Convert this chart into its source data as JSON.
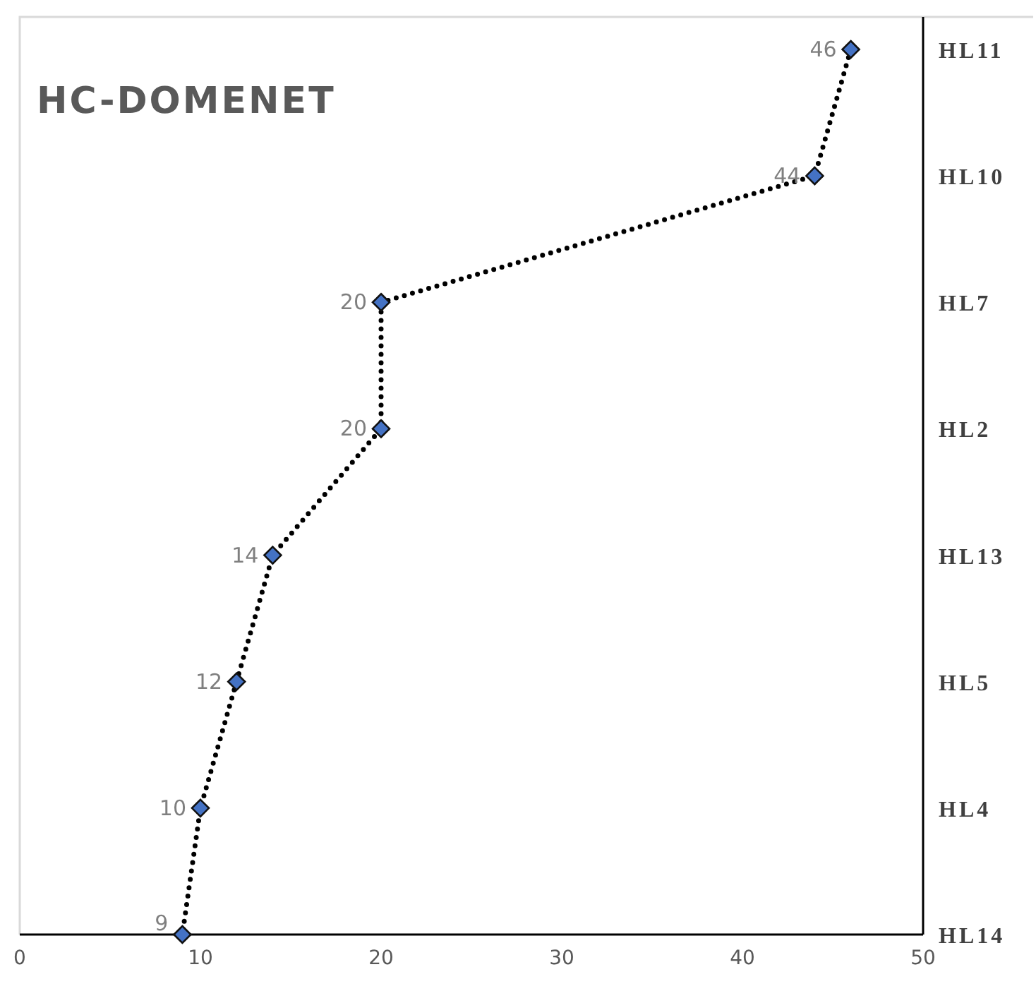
{
  "chart_data": {
    "type": "line",
    "orientation": "horizontal",
    "title": "HC-DOMENET",
    "categories": [
      "HL11",
      "HL10",
      "HL7",
      "HL2",
      "HL13",
      "HL5",
      "HL4",
      "HL14"
    ],
    "series": [
      {
        "color": "#4472c4",
        "values": [
          46,
          44,
          20,
          20,
          14,
          12,
          10,
          9
        ]
      }
    ],
    "xlim": [
      0,
      50
    ],
    "xticks": [
      0,
      10,
      20,
      30,
      40,
      50
    ],
    "data_labels": true,
    "marker": "diamond",
    "line_style": "dotted"
  }
}
